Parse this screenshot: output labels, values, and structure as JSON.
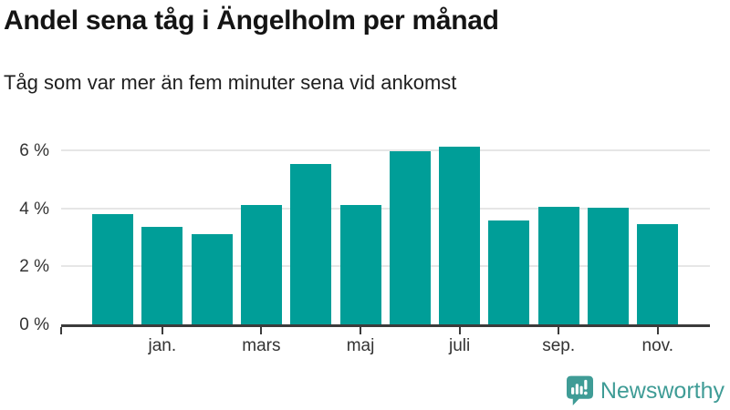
{
  "header": {
    "title": "Andel sena tåg i Ängelholm per månad",
    "subtitle": "Tåg som var mer än fem minuter sena vid ankomst"
  },
  "chart_data": {
    "type": "bar",
    "title": "Andel sena tåg i Ängelholm per månad",
    "subtitle": "Tåg som var mer än fem minuter sena vid ankomst",
    "unit": "%",
    "categories": [
      "",
      "jan.",
      "",
      "mars",
      "",
      "maj",
      "",
      "juli",
      "",
      "sep.",
      "",
      "nov."
    ],
    "values": [
      3.85,
      3.4,
      3.15,
      4.15,
      5.55,
      4.15,
      6.0,
      6.15,
      3.6,
      4.1,
      4.05,
      3.5
    ],
    "y_ticks": [
      {
        "label": "0 %",
        "value": 0
      },
      {
        "label": "2 %",
        "value": 2
      },
      {
        "label": "4 %",
        "value": 4
      },
      {
        "label": "6 %",
        "value": 6
      }
    ],
    "ylim": [
      0,
      6.6
    ],
    "bar_color": "#009e98",
    "grid": "horizontal",
    "legend": "none"
  },
  "footer": {
    "brand": "Newsworthy"
  },
  "colors": {
    "bar_teal": "#009e98",
    "logo_teal": "#3f9c96",
    "axis_dark": "#3b3b3b",
    "gridline_gray": "#e6e6e6",
    "text_dark": "#141414",
    "tick_text": "#333333"
  }
}
